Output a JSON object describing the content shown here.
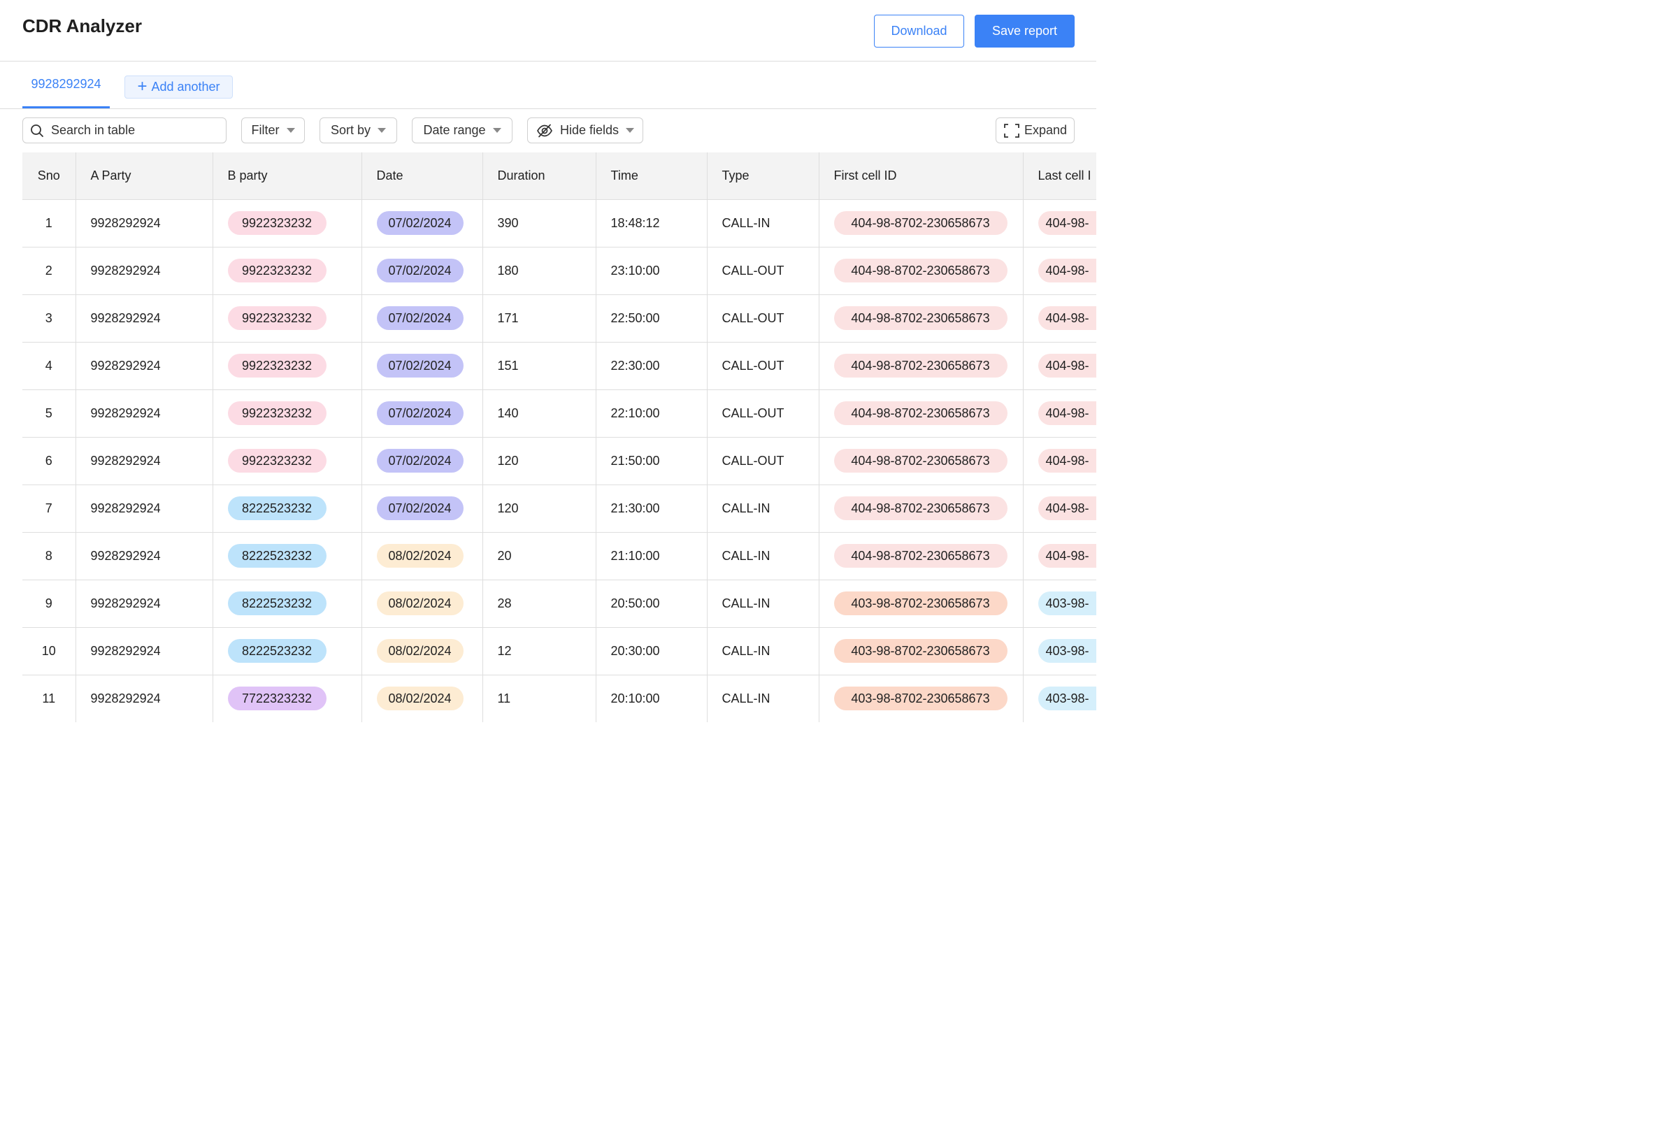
{
  "app": {
    "title": "CDR Analyzer",
    "download_label": "Download",
    "save_label": "Save report"
  },
  "tabs": {
    "active_label": "9928292924",
    "add_label": "Add another"
  },
  "toolbar": {
    "search_placeholder": "Search in table",
    "filter_label": "Filter",
    "sort_label": "Sort by",
    "date_range_label": "Date range",
    "hide_fields_label": "Hide fields",
    "expand_label": "Expand"
  },
  "colors": {
    "accent": "#3b82f6",
    "pink": "#fcdbe4",
    "blue": "#bde3fb",
    "purple": "#e0c3f7",
    "indigo": "#c3c3f7",
    "yellow": "#fdecd3",
    "rose": "#fbe2e2",
    "peach": "#fcd8c8",
    "sky": "#d5effb"
  },
  "table": {
    "columns": [
      "Sno",
      "A Party",
      "B party",
      "Date",
      "Duration",
      "Time",
      "Type",
      "First cell ID",
      "Last cell I"
    ],
    "rows": [
      {
        "sno": "1",
        "a_party": "9928292924",
        "b_party": "9922323232",
        "b_color": "pink",
        "date": "07/02/2024",
        "date_color": "indigo",
        "duration": "390",
        "time": "18:48:12",
        "type": "CALL-IN",
        "first_cell": "404-98-8702-230658673",
        "first_color": "rose",
        "last_cell": "404-98-",
        "last_color": "rose"
      },
      {
        "sno": "2",
        "a_party": "9928292924",
        "b_party": "9922323232",
        "b_color": "pink",
        "date": "07/02/2024",
        "date_color": "indigo",
        "duration": "180",
        "time": "23:10:00",
        "type": "CALL-OUT",
        "first_cell": "404-98-8702-230658673",
        "first_color": "rose",
        "last_cell": "404-98-",
        "last_color": "rose"
      },
      {
        "sno": "3",
        "a_party": "9928292924",
        "b_party": "9922323232",
        "b_color": "pink",
        "date": "07/02/2024",
        "date_color": "indigo",
        "duration": "171",
        "time": "22:50:00",
        "type": "CALL-OUT",
        "first_cell": "404-98-8702-230658673",
        "first_color": "rose",
        "last_cell": "404-98-",
        "last_color": "rose"
      },
      {
        "sno": "4",
        "a_party": "9928292924",
        "b_party": "9922323232",
        "b_color": "pink",
        "date": "07/02/2024",
        "date_color": "indigo",
        "duration": "151",
        "time": "22:30:00",
        "type": "CALL-OUT",
        "first_cell": "404-98-8702-230658673",
        "first_color": "rose",
        "last_cell": "404-98-",
        "last_color": "rose"
      },
      {
        "sno": "5",
        "a_party": "9928292924",
        "b_party": "9922323232",
        "b_color": "pink",
        "date": "07/02/2024",
        "date_color": "indigo",
        "duration": "140",
        "time": "22:10:00",
        "type": "CALL-OUT",
        "first_cell": "404-98-8702-230658673",
        "first_color": "rose",
        "last_cell": "404-98-",
        "last_color": "rose"
      },
      {
        "sno": "6",
        "a_party": "9928292924",
        "b_party": "9922323232",
        "b_color": "pink",
        "date": "07/02/2024",
        "date_color": "indigo",
        "duration": "120",
        "time": "21:50:00",
        "type": "CALL-OUT",
        "first_cell": "404-98-8702-230658673",
        "first_color": "rose",
        "last_cell": "404-98-",
        "last_color": "rose"
      },
      {
        "sno": "7",
        "a_party": "9928292924",
        "b_party": "8222523232",
        "b_color": "blue",
        "date": "07/02/2024",
        "date_color": "indigo",
        "duration": "120",
        "time": "21:30:00",
        "type": "CALL-IN",
        "first_cell": "404-98-8702-230658673",
        "first_color": "rose",
        "last_cell": "404-98-",
        "last_color": "rose"
      },
      {
        "sno": "8",
        "a_party": "9928292924",
        "b_party": "8222523232",
        "b_color": "blue",
        "date": "08/02/2024",
        "date_color": "yellow",
        "duration": "20",
        "time": "21:10:00",
        "type": "CALL-IN",
        "first_cell": "404-98-8702-230658673",
        "first_color": "rose",
        "last_cell": "404-98-",
        "last_color": "rose"
      },
      {
        "sno": "9",
        "a_party": "9928292924",
        "b_party": "8222523232",
        "b_color": "blue",
        "date": "08/02/2024",
        "date_color": "yellow",
        "duration": "28",
        "time": "20:50:00",
        "type": "CALL-IN",
        "first_cell": "403-98-8702-230658673",
        "first_color": "peach",
        "last_cell": "403-98-",
        "last_color": "sky"
      },
      {
        "sno": "10",
        "a_party": "9928292924",
        "b_party": "8222523232",
        "b_color": "blue",
        "date": "08/02/2024",
        "date_color": "yellow",
        "duration": "12",
        "time": "20:30:00",
        "type": "CALL-IN",
        "first_cell": "403-98-8702-230658673",
        "first_color": "peach",
        "last_cell": "403-98-",
        "last_color": "sky"
      },
      {
        "sno": "11",
        "a_party": "9928292924",
        "b_party": "7722323232",
        "b_color": "purple",
        "date": "08/02/2024",
        "date_color": "yellow",
        "duration": "11",
        "time": "20:10:00",
        "type": "CALL-IN",
        "first_cell": "403-98-8702-230658673",
        "first_color": "peach",
        "last_cell": "403-98-",
        "last_color": "sky"
      }
    ]
  }
}
